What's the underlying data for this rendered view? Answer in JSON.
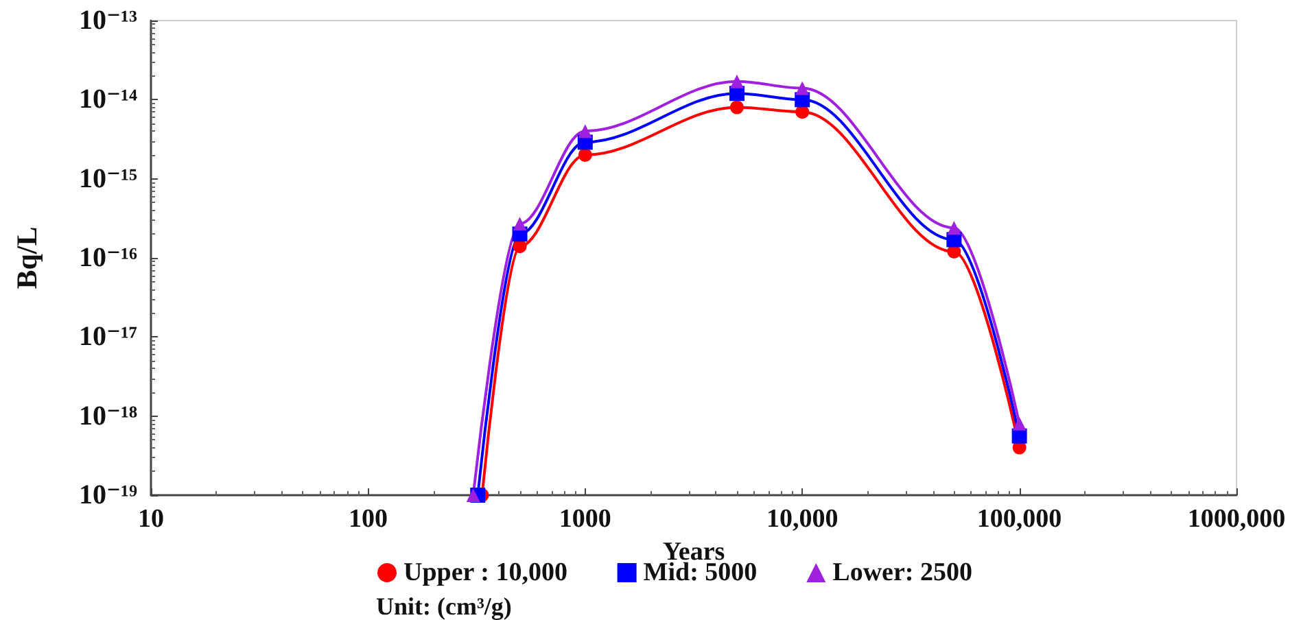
{
  "chart_data": {
    "type": "line",
    "xlabel": "Years",
    "ylabel": "Bq/L",
    "log": "xy",
    "grid": false,
    "legend": "bottom",
    "line_style": "solid",
    "x": [
      320,
      500,
      1000,
      5000,
      10000,
      50000,
      100000
    ],
    "xlim": [
      10,
      1000000
    ],
    "xticks": [
      10,
      100,
      1000,
      {
        "value": 10000,
        "label": "10,000"
      },
      {
        "value": 100000,
        "label": "100,000"
      },
      {
        "value": 1000000,
        "label": "1000,000"
      }
    ],
    "ylim": [
      1e-19,
      1e-13
    ],
    "yticks": [
      {
        "value": 1e-19,
        "label": "10⁻¹⁹"
      },
      {
        "value": 1e-18,
        "label": "10⁻¹⁸"
      },
      {
        "value": 1e-17,
        "label": "10⁻¹⁷"
      },
      {
        "value": 1e-16,
        "label": "10⁻¹⁶"
      },
      {
        "value": 1e-15,
        "label": "10⁻¹⁵"
      },
      {
        "value": 1e-14,
        "label": "10⁻¹⁴"
      },
      {
        "value": 1e-13,
        "label": "10⁻¹³"
      }
    ],
    "series": [
      {
        "name": "Upper : 10,000",
        "color": "#ff0000",
        "marker": "circle",
        "x": [
          335,
          500,
          1000,
          5000,
          10000,
          50000,
          100000
        ],
        "values": [
          1e-19,
          1.4e-16,
          2e-15,
          8e-15,
          7e-15,
          1.2e-16,
          4e-19
        ]
      },
      {
        "name": "Mid: 5000",
        "color": "#0000ff",
        "marker": "square",
        "values": [
          1e-19,
          2e-16,
          2.9e-15,
          1.2e-14,
          1e-14,
          1.7e-16,
          5.6e-19
        ]
      },
      {
        "name": "Lower: 2500",
        "color": "#a020e0",
        "marker": "triangle",
        "x": [
          305,
          500,
          1000,
          5000,
          10000,
          50000,
          100000
        ],
        "values": [
          1e-19,
          2.7e-16,
          4e-15,
          1.7e-14,
          1.4e-14,
          2.4e-16,
          8e-19
        ]
      }
    ],
    "annotations": [
      "Unit: (cm³/g)"
    ]
  }
}
